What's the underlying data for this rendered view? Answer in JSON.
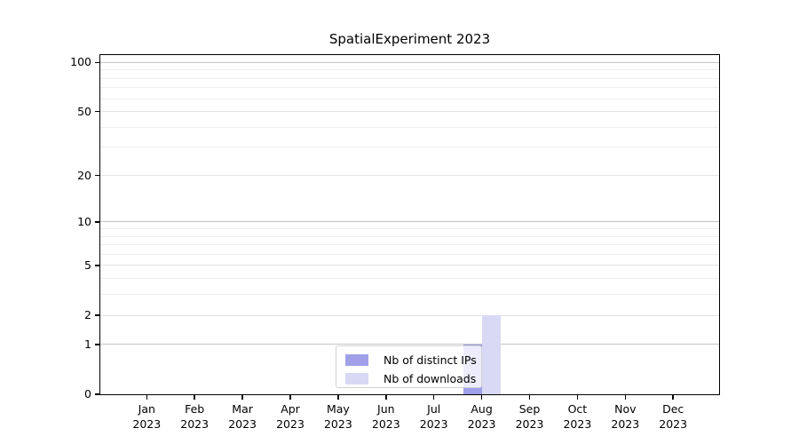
{
  "chart_data": {
    "type": "bar",
    "title": "SpatialExperiment 2023",
    "categories": [
      "Jan 2023",
      "Feb 2023",
      "Mar 2023",
      "Apr 2023",
      "May 2023",
      "Jun 2023",
      "Jul 2023",
      "Aug 2023",
      "Sep 2023",
      "Oct 2023",
      "Nov 2023",
      "Dec 2023"
    ],
    "series": [
      {
        "name": "Nb of distinct IPs",
        "color": "#a0a0e8",
        "values": [
          0,
          0,
          0,
          0,
          0,
          0,
          0,
          1,
          0,
          0,
          0,
          0
        ]
      },
      {
        "name": "Nb of downloads",
        "color": "#d9d9f5",
        "values": [
          0,
          0,
          0,
          0,
          0,
          0,
          0,
          2,
          0,
          0,
          0,
          0
        ]
      }
    ],
    "xlabel": "",
    "ylabel": "",
    "yscale": "log1p",
    "ylim": [
      0,
      111
    ],
    "ytick_values": [
      0,
      1,
      2,
      5,
      10,
      20,
      50,
      100
    ],
    "ytick_decades": [
      1,
      10,
      100
    ],
    "ytick_minor_values": [
      3,
      4,
      6,
      7,
      8,
      9,
      30,
      40,
      60,
      70,
      80,
      90
    ],
    "grid": "horizontal",
    "legend_position": "lower-center-inside",
    "colors": {
      "grid_decade": "#c4c4c4",
      "grid_mid": "#e4e4e4",
      "grid_minor": "#eeeeee",
      "axis": "#000000",
      "background": "#ffffff"
    }
  }
}
